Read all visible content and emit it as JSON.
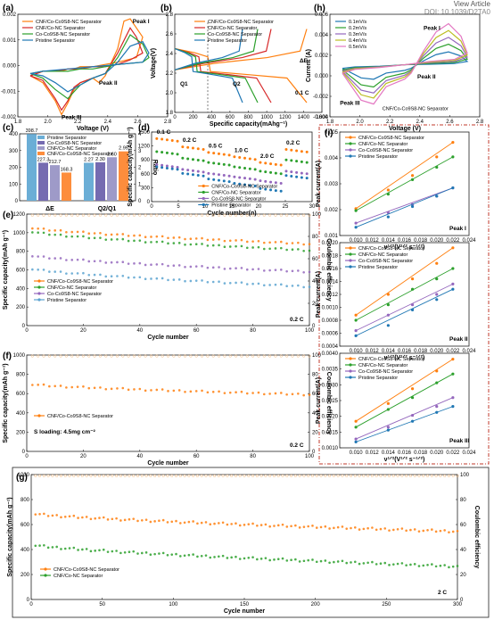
{
  "header": {
    "view_article": "View Article",
    "doi": "DOI: 10.1039/D2TA0"
  },
  "chart_data": [
    {
      "panel": "a",
      "type": "line",
      "xlabel": "Voltage (V)",
      "ylabel": "Current (A)",
      "xlim": [
        1.6,
        2.8
      ],
      "ylim": [
        -0.002,
        0.0025
      ],
      "xticks": [
        "1.8",
        "2.0",
        "2.2",
        "2.4",
        "2.6",
        "2.8"
      ],
      "yticks": [
        "-0.002",
        "-0.001",
        "0.000",
        "0.001",
        "0.002"
      ],
      "series": [
        {
          "name": "CNF/Co-Co9S8-NC Separator",
          "color": "#ff7f0e",
          "x": [
            1.7,
            1.8,
            1.9,
            1.95,
            2.0,
            2.05,
            2.1,
            2.2,
            2.25,
            2.3,
            2.4,
            2.45,
            2.5,
            2.6,
            2.55,
            2.4,
            2.3,
            2.2,
            2.1,
            2.05,
            2.0,
            1.95,
            1.9,
            1.8,
            1.7
          ],
          "y": [
            -0.0002,
            -0.0005,
            -0.0013,
            -0.0019,
            -0.0014,
            -0.0008,
            -0.0005,
            -0.0003,
            -0.0005,
            -0.0002,
            0.001,
            0.0022,
            0.0023,
            0.0015,
            0.0006,
            0.0004,
            0.0003,
            0.0002,
            0.0002,
            0.0001,
            0.0001,
            0.0,
            0.0,
            0.0,
            -0.0002
          ]
        },
        {
          "name": "CNF/Co-NC Separator",
          "color": "#d62728",
          "x": [
            1.7,
            1.8,
            1.9,
            1.95,
            2.0,
            2.05,
            2.1,
            2.2,
            2.3,
            2.4,
            2.5,
            2.55,
            2.6,
            2.5,
            2.4,
            2.3,
            2.2,
            2.1,
            2.0,
            1.9,
            1.8,
            1.7
          ],
          "y": [
            -0.0002,
            -0.0004,
            -0.0012,
            -0.0017,
            -0.0013,
            -0.0007,
            -0.0005,
            -0.0003,
            -0.0001,
            0.0008,
            0.0019,
            0.0015,
            0.0008,
            0.0005,
            0.0003,
            0.0002,
            0.0002,
            0.0001,
            0.0001,
            0.0,
            0.0,
            -0.0002
          ]
        },
        {
          "name": "Co-Co9S8-NC Separator",
          "color": "#2ca02c",
          "x": [
            1.7,
            1.8,
            1.9,
            2.0,
            2.05,
            2.1,
            2.2,
            2.3,
            2.4,
            2.5,
            2.6,
            2.65,
            2.6,
            2.4,
            2.3,
            2.2,
            2.1,
            2.0,
            1.9,
            1.8,
            1.7
          ],
          "y": [
            -0.0001,
            -0.0003,
            -0.0008,
            -0.0012,
            -0.0009,
            -0.0006,
            -0.0003,
            -0.0001,
            0.0006,
            0.0016,
            0.0012,
            0.0006,
            0.0004,
            0.0003,
            0.0002,
            0.0001,
            0.0001,
            0.0,
            0.0,
            0.0,
            -0.0001
          ]
        },
        {
          "name": "Pristine Separator",
          "color": "#1f77b4",
          "x": [
            1.7,
            1.8,
            1.9,
            2.0,
            2.1,
            2.2,
            2.3,
            2.4,
            2.5,
            2.6,
            2.65,
            2.6,
            2.4,
            2.2,
            2.0,
            1.8,
            1.7
          ],
          "y": [
            -0.0001,
            -0.0002,
            -0.0005,
            -0.0009,
            -0.0006,
            -0.0003,
            -0.0001,
            0.0004,
            0.0011,
            0.0013,
            0.0008,
            0.0004,
            0.0003,
            0.0002,
            0.0001,
            0.0,
            -0.0001
          ]
        }
      ],
      "annotations": [
        "Peak I",
        "Peak II",
        "Peak III"
      ]
    },
    {
      "panel": "b",
      "type": "line",
      "xlabel": "Specific capacity(mAhg⁻¹)",
      "ylabel": "Voltage(V)",
      "xlim": [
        0,
        1650
      ],
      "ylim": [
        1.6,
        2.8
      ],
      "xticks": [
        "0",
        "200",
        "400",
        "600",
        "800",
        "1000",
        "1200",
        "1400",
        "1600"
      ],
      "yticks": [
        "1.8",
        "2.0",
        "2.2",
        "2.4",
        "2.6",
        "2.8"
      ],
      "series": [
        {
          "name": "CNF/Co-Co9S8-NC Separator",
          "color": "#ff7f0e",
          "end_capacity": 1480
        },
        {
          "name": "CNF/Co-NC Separator",
          "color": "#d62728",
          "end_capacity": 1080
        },
        {
          "name": "Co-Co9S8-NC Separator",
          "color": "#2ca02c",
          "end_capacity": 930
        },
        {
          "name": "Pristine Separator",
          "color": "#1f77b4",
          "end_capacity": 760
        }
      ],
      "annotations": [
        "ΔE",
        "Q1",
        "Q2",
        "0.1 C"
      ]
    },
    {
      "panel": "h",
      "type": "line",
      "xlabel": "Voltage (V)",
      "ylabel": "Current (A)",
      "xlim": [
        1.6,
        2.8
      ],
      "ylim": [
        -0.006,
        0.006
      ],
      "xticks": [
        "1.8",
        "2.0",
        "2.2",
        "2.4",
        "2.6",
        "2.8"
      ],
      "yticks": [
        "-0.004",
        "-0.002",
        "0.000",
        "0.002",
        "0.004",
        "0.006"
      ],
      "series": [
        {
          "name": "0.1mV/s",
          "color": "#1f77b4",
          "peak_ox": 0.0016,
          "peak_red": -0.0016
        },
        {
          "name": "0.2mV/s",
          "color": "#2ca02c",
          "peak_ox": 0.0025,
          "peak_red": -0.0025
        },
        {
          "name": "0.3mV/s",
          "color": "#9467bd",
          "peak_ox": 0.0033,
          "peak_red": -0.0032
        },
        {
          "name": "0.4mV/s",
          "color": "#bcbd22",
          "peak_ox": 0.0041,
          "peak_red": -0.0038
        },
        {
          "name": "0.5mV/s",
          "color": "#e377c2",
          "peak_ox": 0.0049,
          "peak_red": -0.0045
        }
      ],
      "annotations": [
        "Peak I",
        "Peak II",
        "Peak III",
        "CNF/Co-Co9S8-NC Separator"
      ]
    },
    {
      "panel": "c",
      "type": "bar",
      "categories": [
        "ΔE",
        "Q2/Q1"
      ],
      "ylabel": "mV",
      "ylabel_right": "Ratio",
      "yticks": [
        "0",
        "100",
        "200",
        "300",
        "400"
      ],
      "yticks_right": [
        "0",
        "1",
        "2",
        "3",
        "4"
      ],
      "series": [
        {
          "name": "Pristine Separator",
          "color": "#6baed6",
          "values": [
            398.7,
            2.27
          ]
        },
        {
          "name": "Co-Co9S8-NC Separator",
          "color": "#756bb1",
          "values": [
            227.3,
            2.3
          ]
        },
        {
          "name": "CNF/Co-NC Separator",
          "color": "#9e9ac8",
          "values": [
            212.7,
            2.6
          ]
        },
        {
          "name": "CNF/Co-Co9S8-NC Separator",
          "color": "#fd8d3c",
          "values": [
            168.3,
            2.95
          ]
        }
      ],
      "value_labels": [
        "398.7",
        "227.3",
        "212.7",
        "168.3",
        "2.27",
        "2.30",
        "2.60",
        "2.95"
      ]
    },
    {
      "panel": "d",
      "type": "scatter",
      "xlabel": "Cycle number(n)",
      "ylabel": "Specific capacity(mAh g⁻¹)",
      "xlim": [
        0,
        31
      ],
      "ylim": [
        0,
        1600
      ],
      "xticks": [
        "0",
        "5",
        "10",
        "15",
        "20",
        "25",
        "30"
      ],
      "yticks": [
        "0",
        "300",
        "600",
        "900",
        "1200",
        "1500"
      ],
      "rate_labels": [
        "0.1 C",
        "0.2 C",
        "0.5 C",
        "1.0 C",
        "2.0 C",
        "0.2 C"
      ],
      "series": [
        {
          "name": "CNF/Co-Co9S8-NC Separator",
          "color": "#ff7f0e",
          "rate_values": [
            1450,
            1260,
            1130,
            1030,
            900,
            1200
          ]
        },
        {
          "name": "CNF/Co-NC Separator",
          "color": "#2ca02c",
          "rate_values": [
            1150,
            1000,
            900,
            800,
            700,
            960
          ]
        },
        {
          "name": "Co-Co9S8-NC Separator",
          "color": "#9467bd",
          "rate_values": [
            850,
            740,
            650,
            570,
            480,
            700
          ]
        },
        {
          "name": "Pristine Separator",
          "color": "#1f77b4",
          "rate_values": [
            800,
            650,
            520,
            420,
            300,
            600
          ]
        }
      ]
    },
    {
      "panel": "e",
      "type": "scatter",
      "xlabel": "Cycle number",
      "ylabel": "Specific capacity(mAh g⁻¹)",
      "ylabel_right": "Coulombic efficiency",
      "xlim": [
        0,
        100
      ],
      "ylim": [
        0,
        1200
      ],
      "xticks": [
        "0",
        "20",
        "40",
        "60",
        "80",
        "100"
      ],
      "yticks": [
        "0",
        "200",
        "400",
        "600",
        "800",
        "1000",
        "1200"
      ],
      "yticks_right": [
        "0",
        "20",
        "40",
        "60",
        "80",
        "100"
      ],
      "rate": "0.2 C",
      "series": [
        {
          "name": "CNF/Co-Co9S8-NC Separator",
          "color": "#ff7f0e",
          "start": 1060,
          "end": 880
        },
        {
          "name": "CNF/Co-NC Separator",
          "color": "#2ca02c",
          "start": 1020,
          "end": 810
        },
        {
          "name": "Co-Co9S8-NC Separator",
          "color": "#9467bd",
          "start": 760,
          "end": 580
        },
        {
          "name": "Pristine Separator",
          "color": "#5ba3d0",
          "start": 620,
          "end": 420
        }
      ],
      "efficiency": 99
    },
    {
      "panel": "f",
      "type": "scatter",
      "xlabel": "Cycle number",
      "ylabel": "Specific capacity(mAh g⁻¹)",
      "ylabel_right": "Coulombic efficiency",
      "xlim": [
        0,
        100
      ],
      "ylim": [
        0,
        1000
      ],
      "xticks": [
        "0",
        "20",
        "40",
        "60",
        "80",
        "100"
      ],
      "yticks": [
        "0",
        "200",
        "400",
        "600",
        "800",
        "1000"
      ],
      "yticks_right": [
        "0",
        "20",
        "40",
        "60",
        "80",
        "100"
      ],
      "series": [
        {
          "name": "CNF/Co-Co9S8-NC Separator",
          "color": "#ff7f0e",
          "start": 700,
          "end": 590
        }
      ],
      "annotations": [
        "S loading: 4.5mg cm⁻²",
        "0.2 C"
      ],
      "efficiency": 99
    },
    {
      "panel": "i",
      "type": "scatter",
      "xlabel": "ν¹ᐟ²(V¹ᐟ² s⁻¹ᐟ²)",
      "ylabel": "Peak current(A)",
      "xticks": [
        "0.010",
        "0.012",
        "0.014",
        "0.016",
        "0.018",
        "0.020",
        "0.022",
        "0.024"
      ],
      "subplots": [
        {
          "label": "Peak I",
          "ylim": [
            0.0005,
            0.0055
          ],
          "yticks": [
            "0.001",
            "0.002",
            "0.003",
            "0.004",
            "0.005"
          ],
          "x": [
            0.01,
            0.014,
            0.017,
            0.02,
            0.022
          ],
          "series": [
            {
              "name": "CNF/Co-Co9S8-NC Separator",
              "color": "#ff7f0e",
              "y": [
                0.0018,
                0.0027,
                0.0034,
                0.0043,
                0.005
              ]
            },
            {
              "name": "CNF/Co-NC Separator",
              "color": "#2ca02c",
              "y": [
                0.0017,
                0.0025,
                0.0032,
                0.0038,
                0.0043
              ]
            },
            {
              "name": "Co-Co9S8-NC Separator",
              "color": "#9467bd",
              "y": [
                0.0011,
                0.0016,
                0.002,
                0.0024,
                0.0028
              ]
            },
            {
              "name": "Pristine Separator",
              "color": "#1f77b4",
              "y": [
                0.0009,
                0.0014,
                0.0019,
                0.0024,
                0.0028
              ]
            }
          ]
        },
        {
          "label": "Peak II",
          "ylim": [
            0.0002,
            0.0022
          ],
          "yticks": [
            "0.0004",
            "0.0006",
            "0.0008",
            "0.0010",
            "0.0012",
            "0.0014",
            "0.0016",
            "0.0018",
            "0.0020"
          ],
          "x": [
            0.01,
            0.014,
            0.017,
            0.02,
            0.022
          ],
          "series": [
            {
              "name": "CNF/Co-Co9S8-NC Separator",
              "color": "#ff7f0e",
              "y": [
                0.0008,
                0.0012,
                0.0015,
                0.0018,
                0.0021
              ]
            },
            {
              "name": "CNF/Co-NC Separator",
              "color": "#2ca02c",
              "y": [
                0.0007,
                0.001,
                0.0013,
                0.0015,
                0.0017
              ]
            },
            {
              "name": "Co-Co9S8-NC Separator",
              "color": "#9467bd",
              "y": [
                0.0005,
                0.0008,
                0.001,
                0.0012,
                0.0014
              ]
            },
            {
              "name": "Pristine Separator",
              "color": "#1f77b4",
              "y": [
                0.0004,
                0.0006,
                0.0009,
                0.0011,
                0.0013
              ]
            }
          ]
        },
        {
          "label": "Peak III",
          "ylim": [
            0.0008,
            0.004
          ],
          "yticks": [
            "0.0010",
            "0.0015",
            "0.0020",
            "0.0025",
            "0.0030",
            "0.0035",
            "0.0040"
          ],
          "x": [
            0.01,
            0.014,
            0.017,
            0.02,
            0.022
          ],
          "series": [
            {
              "name": "CNF/Co-Co9S8-NC Separator",
              "color": "#ff7f0e",
              "y": [
                0.0017,
                0.0023,
                0.0028,
                0.0034,
                0.0038
              ]
            },
            {
              "name": "CNF/Co-NC Separator",
              "color": "#2ca02c",
              "y": [
                0.0015,
                0.0021,
                0.0025,
                0.003,
                0.0033
              ]
            },
            {
              "name": "Co-Co9S8-NC Separator",
              "color": "#9467bd",
              "y": [
                0.0011,
                0.0015,
                0.0019,
                0.0022,
                0.0025
              ]
            },
            {
              "name": "Pristine Separator",
              "color": "#1f77b4",
              "y": [
                0.001,
                0.0014,
                0.0017,
                0.002,
                0.0022
              ]
            }
          ]
        }
      ]
    },
    {
      "panel": "g",
      "type": "scatter",
      "xlabel": "Cycle number",
      "ylabel": "Specific capacity(mAh g⁻¹)",
      "ylabel_right": "Coulombic efficiency",
      "xlim": [
        0,
        300
      ],
      "ylim": [
        0,
        1000
      ],
      "xticks": [
        "0",
        "50",
        "100",
        "150",
        "200",
        "250",
        "300"
      ],
      "yticks": [
        "0",
        "200",
        "400",
        "600",
        "800",
        "1000"
      ],
      "yticks_right": [
        "0",
        "20",
        "40",
        "60",
        "80",
        "100"
      ],
      "rate": "2 C",
      "series": [
        {
          "name": "CNF/Co-Co9S8-NC Separator",
          "color": "#ff7f0e",
          "start": 690,
          "end": 545
        },
        {
          "name": "CNF/Co-NC Separator",
          "color": "#2ca02c",
          "start": 440,
          "end": 265
        }
      ],
      "efficiency": 99
    }
  ]
}
